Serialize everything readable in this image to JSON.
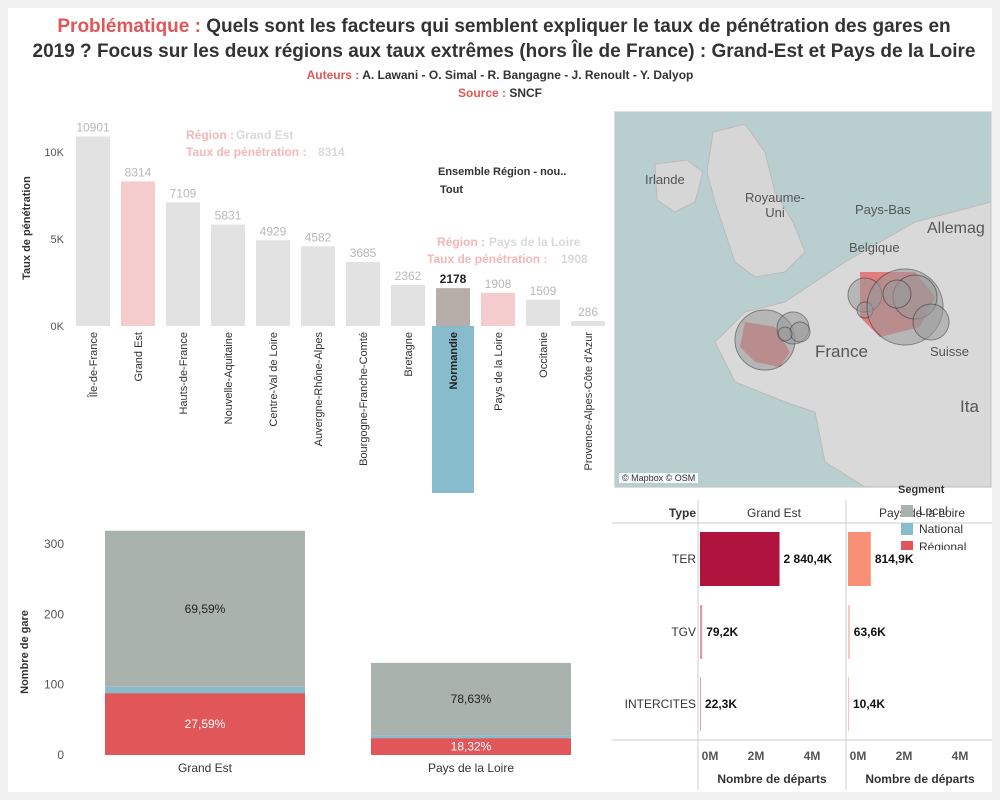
{
  "header": {
    "title_prefix": "Problématique :",
    "title_line1": "Quels sont les facteurs qui semblent expliquer le taux de pénétration des gares en",
    "title_line2": "2019 ?  Focus sur les deux régions aux taux extrêmes (hors Île de France) : Grand-Est et Pays de la Loire",
    "authors_label": "Auteurs :",
    "authors": "A. Lawani - O. Simal - R. Bangagne - J. Renoult - Y. Dalyop",
    "source_label": "Source :",
    "source": "SNCF"
  },
  "colors": {
    "accent": "#e15759",
    "local": "#aab2ae",
    "national": "#86bccb",
    "regional": "#e15759",
    "ter_ge": "#b0133e",
    "ter_pdl": "#f88f77",
    "bar_grey": "#e2e2e2",
    "bar_pink": "#f4cccd",
    "bar_normandie": "#b7aeaa"
  },
  "chart_data": [
    {
      "type": "bar",
      "ylabel": "Taux de pénétration",
      "yticks": [
        "10K",
        "5K",
        "0K"
      ],
      "ylim": [
        0,
        11500
      ],
      "categories": [
        "Île-de-France",
        "Grand Est",
        "Hauts-de-France",
        "Nouvelle-Aquitaine",
        "Centre-Val de Loire",
        "Auvergne-Rhône-Alpes",
        "Bourgogne-Franche-Comté",
        "Bretagne",
        "Normandie",
        "Pays de la Loire",
        "Occitanie",
        "Provence-Alpes-Côte d'Azur"
      ],
      "values": [
        10901,
        8314,
        7109,
        5831,
        4929,
        4582,
        3685,
        2362,
        2178,
        1908,
        1509,
        286
      ],
      "labels": [
        "10901",
        "8314",
        "7109",
        "5831",
        "4929",
        "4582",
        "3685",
        "2362",
        "2178",
        "1908",
        "1509",
        "286"
      ],
      "selected": "Normandie",
      "highlighted": [
        "Grand Est",
        "Pays de la Loire"
      ],
      "tooltips": [
        {
          "l1_label": "Région :",
          "l1_value": "Grand Est",
          "l2_label": "Taux de pénétration :",
          "l2_value": "8314"
        },
        {
          "l1_label": "Région :",
          "l1_value": "Pays de la Loire",
          "l2_label": "Taux de pénétration :",
          "l2_value": "1908"
        }
      ],
      "filter": {
        "title": "Ensemble Région - nou..",
        "value": "Tout"
      }
    },
    {
      "type": "bar",
      "ylabel": "Nombre de gare",
      "yticks": [
        "300",
        "200",
        "100",
        "0"
      ],
      "ylim": [
        0,
        320
      ],
      "categories": [
        "Grand Est",
        "Pays de la Loire"
      ],
      "series": [
        {
          "name": "Régional",
          "values": [
            88,
            24
          ]
        },
        {
          "name": "National",
          "values": [
            9,
            4
          ]
        },
        {
          "name": "Local",
          "values": [
            222,
            103
          ]
        }
      ],
      "labels": {
        "Grand Est": [
          "27,59%",
          "69,59%"
        ],
        "Pays de la Loire": [
          "18,32%",
          "78,63%"
        ]
      }
    },
    {
      "type": "bar",
      "headers": {
        "type": "Type",
        "ge": "Grand Est",
        "pdl": "Pays de la Loire"
      },
      "categories": [
        "TER",
        "TGV",
        "INTERCITES"
      ],
      "series": [
        {
          "name": "Grand Est",
          "values": [
            2840.4,
            79.2,
            22.3
          ],
          "labels": [
            "2 840,4K",
            "79,2K",
            "22,3K"
          ]
        },
        {
          "name": "Pays de la Loire",
          "values": [
            814.9,
            63.6,
            10.4
          ],
          "labels": [
            "814,9K",
            "63,6K",
            "10,4K"
          ]
        }
      ],
      "xticks": [
        "0M",
        "2M",
        "4M"
      ],
      "xlim": [
        0,
        5000
      ],
      "xlabel": "Nombre de départs"
    }
  ],
  "legend": {
    "title": "Segment",
    "items": [
      "Local",
      "National",
      "Régional"
    ]
  },
  "map": {
    "labels": [
      "Irlande",
      "Royaume-Uni",
      "Pays-Bas",
      "Belgique",
      "Allemag",
      "France",
      "Suisse",
      "Ita"
    ],
    "copyright": "© Mapbox © OSM"
  }
}
